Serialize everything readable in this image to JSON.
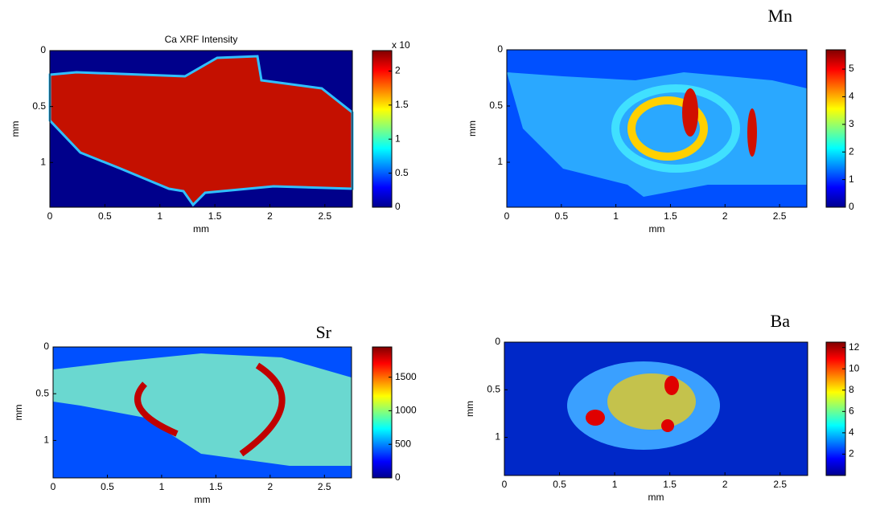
{
  "chart_data": [
    {
      "type": "heatmap",
      "title": "Ca XRF Intensity",
      "xlabel": "mm",
      "ylabel": "mm",
      "xlim": [
        0,
        2.75
      ],
      "xticks": [
        0,
        0.5,
        1,
        1.5,
        2,
        2.5
      ],
      "ylim": [
        0,
        1.4
      ],
      "yticks": [
        0,
        0.5,
        1
      ],
      "clim": [
        0,
        2.3
      ],
      "cticks": [
        0,
        0.5,
        1,
        1.5,
        2
      ],
      "colorbar_label": "x 10"
    },
    {
      "type": "heatmap",
      "title": "Mn",
      "xlabel": "mm",
      "ylabel": "mm",
      "xlim": [
        0,
        2.75
      ],
      "xticks": [
        0,
        0.5,
        1,
        1.5,
        2,
        2.5
      ],
      "ylim": [
        0,
        1.4
      ],
      "yticks": [
        0,
        0.5,
        1
      ],
      "clim": [
        0,
        5.7
      ],
      "cticks": [
        0,
        1,
        2,
        3,
        4,
        5
      ]
    },
    {
      "type": "heatmap",
      "title": "Sr",
      "xlabel": "mm",
      "ylabel": "mm",
      "xlim": [
        0,
        2.75
      ],
      "xticks": [
        0,
        0.5,
        1,
        1.5,
        2,
        2.5
      ],
      "ylim": [
        0,
        1.4
      ],
      "yticks": [
        0,
        0.5,
        1
      ],
      "clim": [
        0,
        1950
      ],
      "cticks": [
        0,
        500,
        1000,
        1500
      ]
    },
    {
      "type": "heatmap",
      "title": "Ba",
      "xlabel": "mm",
      "ylabel": "mm",
      "xlim": [
        0,
        2.75
      ],
      "xticks": [
        0,
        0.5,
        1,
        1.5,
        2,
        2.5
      ],
      "ylim": [
        0,
        1.4
      ],
      "yticks": [
        0,
        0.5,
        1
      ],
      "clim": [
        0,
        12.5
      ],
      "cticks": [
        2,
        4,
        6,
        8,
        10,
        12
      ]
    }
  ]
}
